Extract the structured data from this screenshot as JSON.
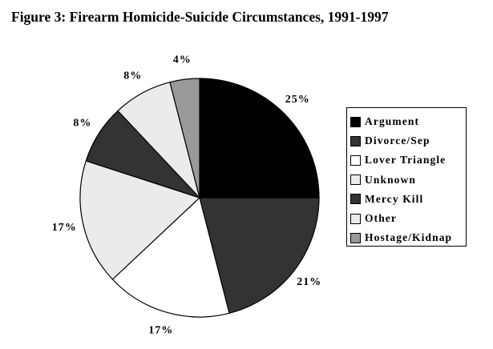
{
  "figure": {
    "title": "Figure 3: Firearm Homicide-Suicide Circumstances, 1991-1997"
  },
  "chart_data": {
    "type": "pie",
    "title": "Figure 3: Firearm Homicide-Suicide Circumstances, 1991-1997",
    "slices": [
      {
        "label": "Argument",
        "value": 25,
        "display": "25%",
        "color": "#000000"
      },
      {
        "label": "Divorce/Sep",
        "value": 21,
        "display": "21%",
        "color": "#333333"
      },
      {
        "label": "Lover Triangle",
        "value": 17,
        "display": "17%",
        "color": "#ffffff"
      },
      {
        "label": "Unknown",
        "value": 17,
        "display": "17%",
        "color": "#ebebeb"
      },
      {
        "label": "Mercy Kill",
        "value": 8,
        "display": "8%",
        "color": "#333333"
      },
      {
        "label": "Other",
        "value": 8,
        "display": "8%",
        "color": "#ebebeb"
      },
      {
        "label": "Hostage/Kidnap",
        "value": 4,
        "display": "4%",
        "color": "#999999"
      }
    ],
    "legend": {
      "placement": "right",
      "entries": [
        "Argument",
        "Divorce/Sep",
        "Lover Triangle",
        "Unknown",
        "Mercy Kill",
        "Other",
        "Hostage/Kidnap"
      ]
    }
  }
}
